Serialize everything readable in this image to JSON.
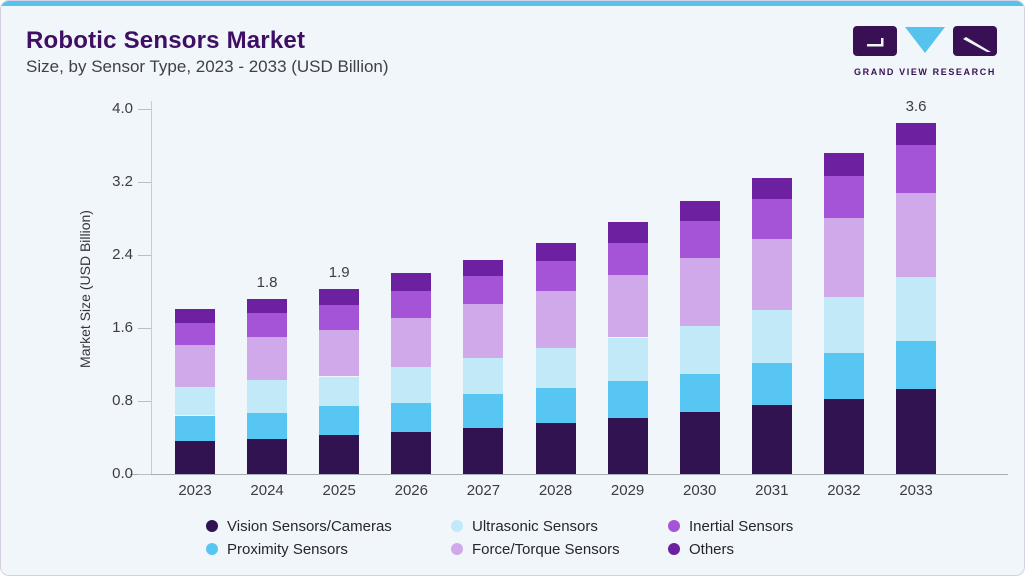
{
  "header": {
    "title": "Robotic Sensors Market",
    "subtitle": "Size, by Sensor Type, 2023 - 2033 (USD Billion)"
  },
  "logo": {
    "text": "GRAND VIEW RESEARCH"
  },
  "colors": {
    "accent_cyan": "#56c3ee",
    "brand_purple": "#3a1054",
    "card_background": "#f0f6fa"
  },
  "chart_data": {
    "type": "bar",
    "stacked": true,
    "title": "Robotic Sensors Market Size, by Sensor Type, 2023 - 2033 (USD Billion)",
    "categories": [
      "2023",
      "2024",
      "2025",
      "2026",
      "2027",
      "2028",
      "2029",
      "2030",
      "2031",
      "2032",
      "2033"
    ],
    "series": [
      {
        "name": "Vision Sensors/Cameras",
        "color": "#321351",
        "values": [
          0.34,
          0.36,
          0.4,
          0.43,
          0.47,
          0.52,
          0.57,
          0.64,
          0.71,
          0.77,
          0.87
        ]
      },
      {
        "name": "Proximity Sensors",
        "color": "#58c6f2",
        "values": [
          0.26,
          0.27,
          0.3,
          0.3,
          0.35,
          0.36,
          0.38,
          0.39,
          0.43,
          0.47,
          0.49
        ]
      },
      {
        "name": "Ultrasonic Sensors",
        "color": "#c2e9f8",
        "values": [
          0.29,
          0.33,
          0.3,
          0.37,
          0.37,
          0.41,
          0.45,
          0.49,
          0.54,
          0.58,
          0.66
        ]
      },
      {
        "name": "Force/Torque Sensors",
        "color": "#d0a9ea",
        "values": [
          0.43,
          0.45,
          0.48,
          0.5,
          0.55,
          0.59,
          0.64,
          0.7,
          0.73,
          0.81,
          0.86
        ]
      },
      {
        "name": "Inertial Sensors",
        "color": "#a553d7",
        "values": [
          0.23,
          0.24,
          0.25,
          0.28,
          0.29,
          0.3,
          0.33,
          0.37,
          0.41,
          0.43,
          0.49
        ]
      },
      {
        "name": "Others",
        "color": "#6d21a1",
        "values": [
          0.14,
          0.15,
          0.17,
          0.18,
          0.17,
          0.19,
          0.21,
          0.21,
          0.22,
          0.23,
          0.23
        ]
      }
    ],
    "bar_value_labels": {
      "2024": "1.8",
      "2025": "1.9",
      "2033": "3.6"
    },
    "ylabel": "Market Size (USD Billion)",
    "yticks": [
      "0.0",
      "0.8",
      "1.6",
      "2.4",
      "3.2",
      "4.0"
    ],
    "ylim": [
      0,
      4.0
    ],
    "grid": false,
    "legend_position": "bottom",
    "legend_rows": [
      [
        0,
        2,
        4
      ],
      [
        1,
        3,
        5
      ]
    ]
  }
}
